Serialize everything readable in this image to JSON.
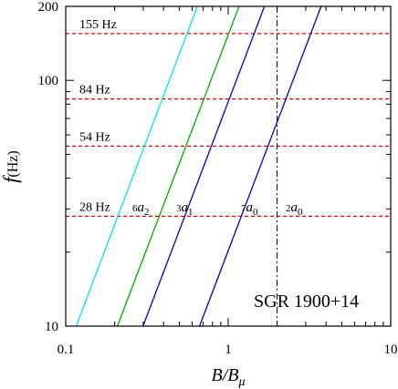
{
  "chart_data": {
    "type": "line",
    "title": "",
    "xlabel": "B/B_μ",
    "ylabel": "f (Hz)",
    "xscale": "log",
    "yscale": "log",
    "xlim": [
      0.1,
      10
    ],
    "ylim": [
      10,
      200
    ],
    "x_ticks": [
      0.1,
      1,
      10
    ],
    "x_tick_labels": [
      "0.1",
      "1",
      "10"
    ],
    "y_ticks": [
      10,
      100,
      200
    ],
    "y_tick_labels": [
      "10",
      "100",
      "200"
    ],
    "series": [
      {
        "name": "6a2",
        "label_prefix": "6",
        "label_base": "a",
        "label_sub": "2",
        "color": "#00e5ee",
        "x": [
          0.116,
          0.646
        ],
        "y": [
          10,
          200
        ]
      },
      {
        "name": "3a1",
        "label_prefix": "3",
        "label_base": "a",
        "label_sub": "1",
        "color": "#00aa00",
        "x": [
          0.208,
          1.166
        ],
        "y": [
          10,
          200
        ]
      },
      {
        "name": "7a0",
        "label_prefix": "7",
        "label_base": "a",
        "label_sub": "0",
        "color": "#0000cc",
        "x": [
          0.299,
          1.671
        ],
        "y": [
          10,
          200
        ]
      },
      {
        "name": "2a0",
        "label_prefix": "2",
        "label_base": "a",
        "label_sub": "0",
        "color": "#0000cc",
        "x": [
          0.666,
          3.73
        ],
        "y": [
          10,
          200
        ]
      }
    ],
    "hlines": [
      {
        "y": 155,
        "label": "155 Hz",
        "color": "#dd0000"
      },
      {
        "y": 84,
        "label": "84 Hz",
        "color": "#dd0000"
      },
      {
        "y": 54,
        "label": "54 Hz",
        "color": "#dd0000"
      },
      {
        "y": 28,
        "label": "28 Hz",
        "color": "#dd0000"
      }
    ],
    "vline": {
      "x": 2.0,
      "color": "#000000"
    },
    "annotation": "SGR 1900+14",
    "grid": false,
    "legend": "none"
  }
}
